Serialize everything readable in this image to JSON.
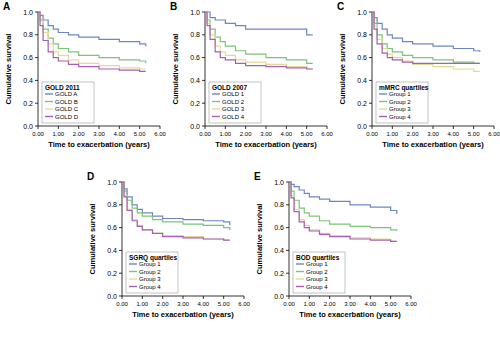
{
  "chart_data": [
    {
      "type": "line",
      "line_style": "step",
      "title": "A",
      "y_label": "Cumulative survival",
      "x_label": "Time to exacerbation (years)",
      "legend_title": "GOLD 2011",
      "legend": "lower left",
      "xlim": [
        0,
        6
      ],
      "ylim": [
        0,
        1
      ],
      "xticks": [
        {
          "value": 0,
          "label": "0.00"
        },
        {
          "value": 1,
          "label": "1.00"
        },
        {
          "value": 2,
          "label": "2.00"
        },
        {
          "value": 3,
          "label": "3.00"
        },
        {
          "value": 4,
          "label": "4.00"
        },
        {
          "value": 5,
          "label": "5.00"
        },
        {
          "value": 6,
          "label": "6.00"
        }
      ],
      "yticks": [
        {
          "value": 0,
          "label": "0.0"
        },
        0.2,
        0.4,
        0.6,
        0.8,
        {
          "value": 1,
          "label": "1.0"
        }
      ],
      "x": [
        0,
        0.1,
        0.25,
        0.5,
        0.75,
        1,
        1.5,
        2,
        3,
        4,
        5,
        5.3
      ],
      "series": [
        {
          "name": "GOLD A",
          "color": "#6d86c3",
          "values": [
            1,
            0.97,
            0.93,
            0.88,
            0.85,
            0.82,
            0.8,
            0.78,
            0.76,
            0.74,
            0.72,
            0.7
          ]
        },
        {
          "name": "GOLD B",
          "color": "#7cc47a",
          "values": [
            1,
            0.93,
            0.85,
            0.77,
            0.72,
            0.68,
            0.65,
            0.62,
            0.6,
            0.58,
            0.57,
            0.55
          ]
        },
        {
          "name": "GOLD C",
          "color": "#e6d89c",
          "values": [
            1,
            0.92,
            0.82,
            0.72,
            0.65,
            0.62,
            0.58,
            0.55,
            0.53,
            0.51,
            0.5,
            0.5
          ]
        },
        {
          "name": "GOLD D",
          "color": "#a55fb3",
          "values": [
            1,
            0.88,
            0.75,
            0.65,
            0.6,
            0.57,
            0.54,
            0.52,
            0.5,
            0.49,
            0.48,
            0.48
          ]
        }
      ]
    },
    {
      "type": "line",
      "line_style": "step",
      "title": "B",
      "y_label": "Cumulative survival",
      "x_label": "Time to exacerbation (years)",
      "legend_title": "GOLD 2007",
      "legend": "lower left",
      "xlim": [
        0,
        6
      ],
      "ylim": [
        0,
        1
      ],
      "xticks": [
        {
          "value": 0,
          "label": "0.00"
        },
        {
          "value": 1,
          "label": "1.00"
        },
        {
          "value": 2,
          "label": "2.00"
        },
        {
          "value": 3,
          "label": "3.00"
        },
        {
          "value": 4,
          "label": "4.00"
        },
        {
          "value": 5,
          "label": "5.00"
        },
        {
          "value": 6,
          "label": "6.00"
        }
      ],
      "yticks": [
        {
          "value": 0,
          "label": "0.0"
        },
        0.2,
        0.4,
        0.6,
        0.8,
        {
          "value": 1,
          "label": "1.0"
        }
      ],
      "x": [
        0,
        0.1,
        0.25,
        0.5,
        0.75,
        1,
        1.5,
        2,
        3,
        4,
        5,
        5.3
      ],
      "series": [
        {
          "name": "GOLD 1",
          "color": "#6d86c3",
          "values": [
            1,
            1,
            0.95,
            0.93,
            0.93,
            0.9,
            0.88,
            0.85,
            0.85,
            0.85,
            0.8,
            0.8
          ]
        },
        {
          "name": "GOLD 2",
          "color": "#7cc47a",
          "values": [
            1,
            0.93,
            0.85,
            0.78,
            0.74,
            0.7,
            0.66,
            0.63,
            0.6,
            0.58,
            0.55,
            0.55
          ]
        },
        {
          "name": "GOLD 3",
          "color": "#e6d89c",
          "values": [
            1,
            0.9,
            0.8,
            0.7,
            0.65,
            0.62,
            0.58,
            0.56,
            0.54,
            0.52,
            0.5,
            0.5
          ]
        },
        {
          "name": "GOLD 4",
          "color": "#a55fb3",
          "values": [
            1,
            0.88,
            0.76,
            0.65,
            0.6,
            0.58,
            0.55,
            0.53,
            0.52,
            0.51,
            0.5,
            0.5
          ]
        }
      ]
    },
    {
      "type": "line",
      "line_style": "step",
      "title": "C",
      "y_label": "Cumulative survival",
      "x_label": "Time to exacerbation (years)",
      "legend_title": "mMRC quartiles",
      "legend": "lower left",
      "xlim": [
        0,
        6
      ],
      "ylim": [
        0,
        1
      ],
      "xticks": [
        {
          "value": 0,
          "label": "0.00"
        },
        {
          "value": 1,
          "label": "1.00"
        },
        {
          "value": 2,
          "label": "2.00"
        },
        {
          "value": 3,
          "label": "3.00"
        },
        {
          "value": 4,
          "label": "4.00"
        },
        {
          "value": 5,
          "label": "5.00"
        },
        {
          "value": 6,
          "label": "6.00"
        }
      ],
      "yticks": [
        {
          "value": 0,
          "label": "0.0"
        },
        0.2,
        0.4,
        0.6,
        0.8,
        {
          "value": 1,
          "label": "1.0"
        }
      ],
      "x": [
        0,
        0.1,
        0.25,
        0.5,
        0.75,
        1,
        1.5,
        2,
        3,
        4,
        5,
        5.3
      ],
      "series": [
        {
          "name": "Group 1",
          "color": "#6d86c3",
          "values": [
            1,
            0.95,
            0.9,
            0.85,
            0.8,
            0.77,
            0.74,
            0.72,
            0.7,
            0.68,
            0.66,
            0.65
          ]
        },
        {
          "name": "Group 2",
          "color": "#7cc47a",
          "values": [
            1,
            0.9,
            0.8,
            0.72,
            0.68,
            0.65,
            0.62,
            0.6,
            0.58,
            0.56,
            0.55,
            0.55
          ]
        },
        {
          "name": "Group 3",
          "color": "#e6d89c",
          "values": [
            1,
            0.88,
            0.76,
            0.68,
            0.63,
            0.6,
            0.57,
            0.54,
            0.52,
            0.5,
            0.48,
            0.48
          ]
        },
        {
          "name": "Group 4",
          "color": "#a55fb3",
          "values": [
            1,
            0.85,
            0.72,
            0.64,
            0.6,
            0.58,
            0.56,
            0.55,
            0.55,
            0.55,
            0.55,
            0.55
          ]
        }
      ]
    },
    {
      "type": "line",
      "line_style": "step",
      "title": "D",
      "y_label": "Cumulative survival",
      "x_label": "Time to exacerbation (years)",
      "legend_title": "SGRQ quartiles",
      "legend": "lower left",
      "xlim": [
        0,
        6
      ],
      "ylim": [
        0,
        1
      ],
      "xticks": [
        {
          "value": 0,
          "label": "0.00"
        },
        {
          "value": 1,
          "label": "1.00"
        },
        {
          "value": 2,
          "label": "2.00"
        },
        {
          "value": 3,
          "label": "3.00"
        },
        {
          "value": 4,
          "label": "4.00"
        },
        {
          "value": 5,
          "label": "5.00"
        },
        {
          "value": 6,
          "label": "6.00"
        }
      ],
      "yticks": [
        {
          "value": 0,
          "label": "0.0"
        },
        0.2,
        0.4,
        0.6,
        0.8,
        {
          "value": 1,
          "label": "1.0"
        }
      ],
      "x": [
        0,
        0.1,
        0.25,
        0.5,
        0.75,
        1,
        1.5,
        2,
        3,
        4,
        5,
        5.3
      ],
      "series": [
        {
          "name": "Group 1",
          "color": "#6d86c3",
          "values": [
            1,
            0.94,
            0.87,
            0.8,
            0.76,
            0.73,
            0.7,
            0.68,
            0.67,
            0.66,
            0.65,
            0.62
          ]
        },
        {
          "name": "Group 2",
          "color": "#7cc47a",
          "values": [
            1,
            0.92,
            0.84,
            0.77,
            0.73,
            0.7,
            0.67,
            0.65,
            0.63,
            0.62,
            0.6,
            0.58
          ]
        },
        {
          "name": "Group 3",
          "color": "#e6d89c",
          "values": [
            1,
            0.88,
            0.76,
            0.67,
            0.62,
            0.58,
            0.55,
            0.53,
            0.52,
            0.5,
            0.49,
            0.49
          ]
        },
        {
          "name": "Group 4",
          "color": "#a55fb3",
          "values": [
            1,
            0.87,
            0.75,
            0.66,
            0.61,
            0.58,
            0.55,
            0.52,
            0.51,
            0.5,
            0.49,
            0.49
          ]
        }
      ]
    },
    {
      "type": "line",
      "line_style": "step",
      "title": "E",
      "y_label": "Cumulative survival",
      "x_label": "Time to exacerbation (years)",
      "legend_title": "BOD quartiles",
      "legend": "lower left",
      "xlim": [
        0,
        6
      ],
      "ylim": [
        0,
        1
      ],
      "xticks": [
        {
          "value": 0,
          "label": "0.00"
        },
        {
          "value": 1,
          "label": "1.00"
        },
        {
          "value": 2,
          "label": "2.00"
        },
        {
          "value": 3,
          "label": "3.00"
        },
        {
          "value": 4,
          "label": "4.00"
        },
        {
          "value": 5,
          "label": "5.00"
        },
        {
          "value": 6,
          "label": "6.00"
        }
      ],
      "yticks": [
        {
          "value": 0,
          "label": "0.0"
        },
        0.2,
        0.4,
        0.6,
        0.8,
        {
          "value": 1,
          "label": "1.0"
        }
      ],
      "x": [
        0,
        0.1,
        0.25,
        0.5,
        0.75,
        1,
        1.5,
        2,
        3,
        4,
        5,
        5.3
      ],
      "series": [
        {
          "name": "Group 1",
          "color": "#6d86c3",
          "values": [
            1,
            0.98,
            0.96,
            0.93,
            0.9,
            0.87,
            0.85,
            0.83,
            0.8,
            0.78,
            0.75,
            0.72
          ]
        },
        {
          "name": "Group 2",
          "color": "#7cc47a",
          "values": [
            1,
            0.92,
            0.84,
            0.77,
            0.73,
            0.7,
            0.66,
            0.63,
            0.61,
            0.6,
            0.58,
            0.57
          ]
        },
        {
          "name": "Group 3",
          "color": "#e6d89c",
          "values": [
            1,
            0.88,
            0.76,
            0.67,
            0.62,
            0.58,
            0.55,
            0.53,
            0.51,
            0.5,
            0.48,
            0.48
          ]
        },
        {
          "name": "Group 4",
          "color": "#a55fb3",
          "values": [
            1,
            0.86,
            0.74,
            0.65,
            0.6,
            0.57,
            0.54,
            0.52,
            0.5,
            0.49,
            0.48,
            0.48
          ]
        }
      ]
    }
  ]
}
